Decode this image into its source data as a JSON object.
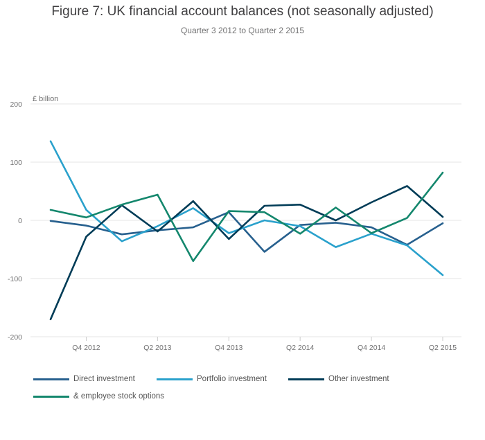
{
  "chart_data": {
    "type": "line",
    "title": "Figure 7: UK financial account balances (not seasonally adjusted)",
    "subtitle": "Quarter 3 2012 to Quarter 2 2015",
    "ylabel": "£ billion",
    "xlabel": "",
    "ylim": [
      -200,
      200
    ],
    "yticks": [
      200,
      100,
      0,
      -100,
      -200
    ],
    "ytick_labels": [
      "200",
      "100",
      "0",
      "-100",
      "-200"
    ],
    "x": [
      "Q3 2012",
      "Q4 2012",
      "Q1 2013",
      "Q2 2013",
      "Q3 2013",
      "Q4 2013",
      "Q1 2014",
      "Q2 2014",
      "Q3 2014",
      "Q4 2014",
      "Q1 2015",
      "Q2 2015"
    ],
    "xtick_labels": [
      {
        "index": 1,
        "label": "Q4 2012"
      },
      {
        "index": 3,
        "label": "Q2 2013"
      },
      {
        "index": 5,
        "label": "Q4 2013"
      },
      {
        "index": 7,
        "label": "Q2 2014"
      },
      {
        "index": 9,
        "label": "Q4 2014"
      },
      {
        "index": 11,
        "label": "Q2 2015"
      }
    ],
    "grid": true,
    "legend_position": "bottom",
    "series": [
      {
        "name": "Direct investment",
        "color": "#27608e",
        "values": [
          -1,
          -9,
          -24,
          -17,
          -12,
          14,
          -54,
          -8,
          -4,
          -12,
          -42,
          -5
        ]
      },
      {
        "name": "Portfolio investment",
        "color": "#2aa1cc",
        "values": [
          136,
          18,
          -36,
          -10,
          21,
          -22,
          0,
          -10,
          -46,
          -23,
          -43,
          -94
        ]
      },
      {
        "name": "Other investment",
        "color": "#003c57",
        "values": [
          -170,
          -28,
          26,
          -19,
          33,
          -32,
          25,
          27,
          0,
          31,
          59,
          6
        ]
      },
      {
        "name": "& employee stock options",
        "color": "#14876d",
        "values": [
          18,
          5,
          27,
          44,
          -70,
          16,
          14,
          -23,
          22,
          -22,
          4,
          82
        ]
      }
    ]
  }
}
